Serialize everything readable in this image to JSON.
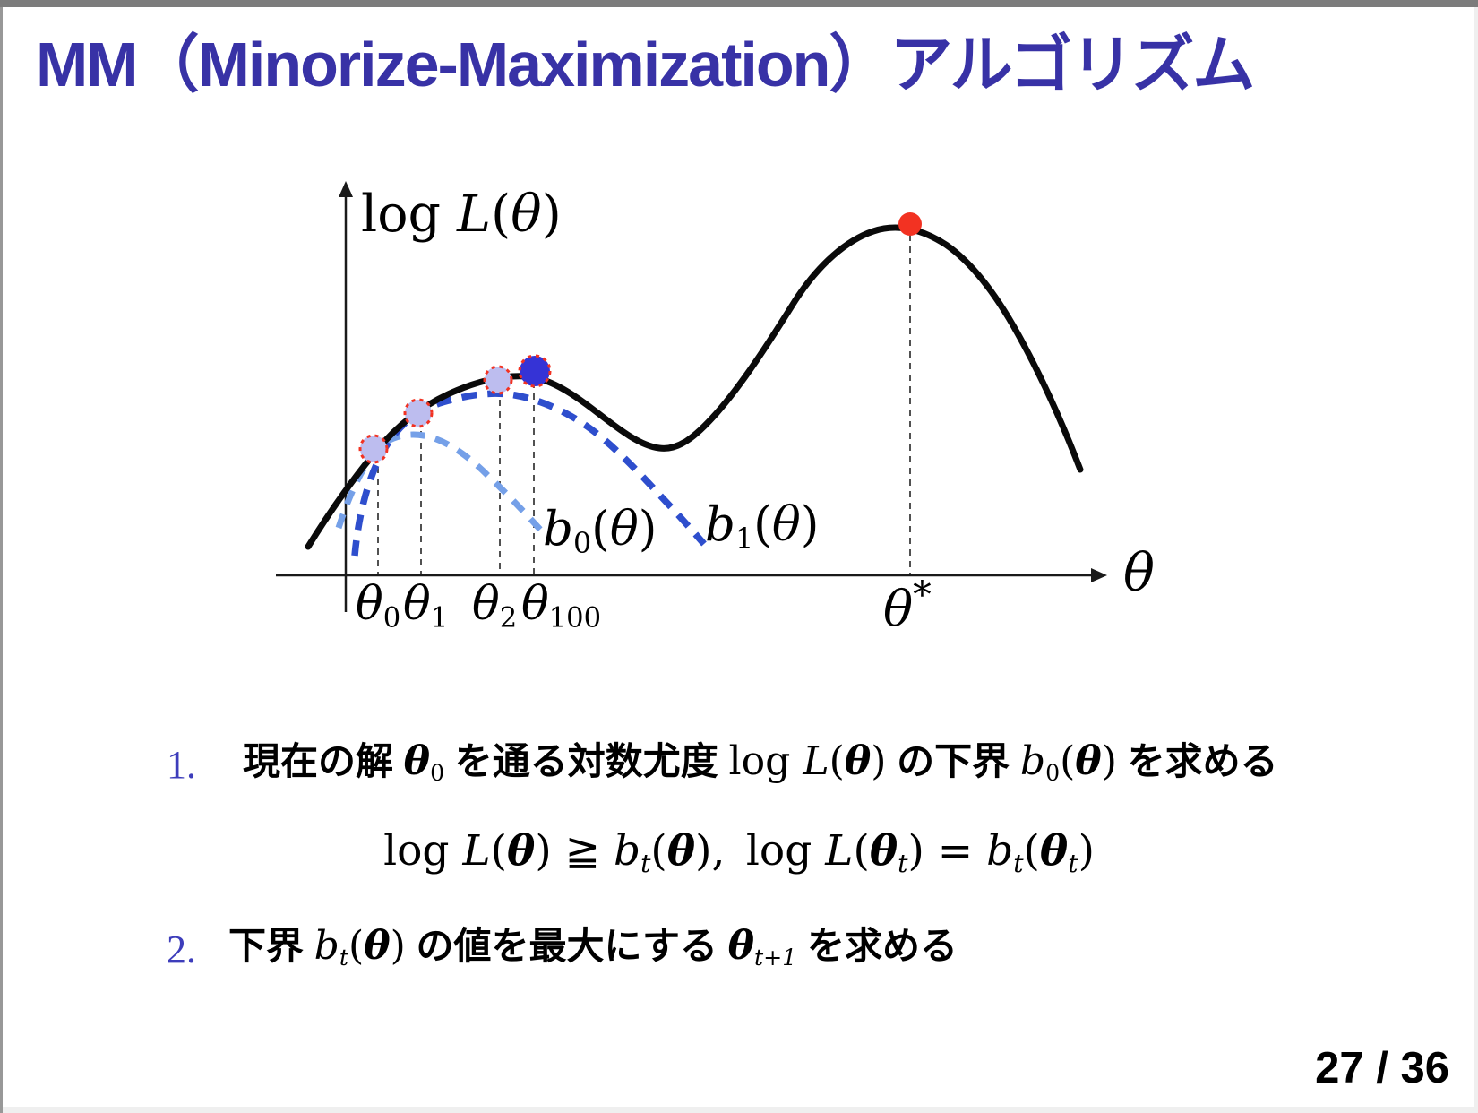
{
  "colors": {
    "title_blue": "#3832a6",
    "item_number_blue": "#3d3dbb",
    "curve_black": "#0a0a0a",
    "bound0_light_blue": "#75a0e8",
    "bound1_dark_blue": "#2e4ecd",
    "point_lavender": "#bdbdef",
    "point_blue": "#3533d6",
    "point_red": "#f23222",
    "ring_red": "#f23222",
    "axis_black": "#1a1a1a",
    "guide_gray": "#333333",
    "viewer_bar_gray": "#7c7c7c",
    "viewer_bg_gray": "#efefef"
  },
  "slide": {
    "title": "MM（Minorize-Maximization）アルゴリズム",
    "page_indicator": "27 / 36"
  },
  "diagram": {
    "type": "conceptual-function-plot",
    "description": "Log-likelihood curve with successive minorizing lower bounds",
    "y_axis_label_tokens": [
      {
        "t": "log ",
        "c": "rm"
      },
      {
        "t": "L",
        "c": "it"
      },
      {
        "t": "(",
        "c": "rm"
      },
      {
        "t": "θ",
        "c": "it"
      },
      {
        "t": ")",
        "c": "rm"
      }
    ],
    "x_axis_label_tokens": [
      {
        "t": "θ",
        "c": "it"
      }
    ],
    "b0_label_tokens": [
      {
        "t": "b",
        "c": "it"
      },
      {
        "t": "0",
        "c": "sub"
      },
      {
        "t": "(",
        "c": "rm"
      },
      {
        "t": "θ",
        "c": "it"
      },
      {
        "t": ")",
        "c": "rm"
      }
    ],
    "b1_label_tokens": [
      {
        "t": "b",
        "c": "it"
      },
      {
        "t": "1",
        "c": "sub"
      },
      {
        "t": "(",
        "c": "rm"
      },
      {
        "t": "θ",
        "c": "it"
      },
      {
        "t": ")",
        "c": "rm"
      }
    ],
    "tick_theta0_tokens": [
      {
        "t": "θ",
        "c": "it"
      },
      {
        "t": "0",
        "c": "sub"
      }
    ],
    "tick_theta1_tokens": [
      {
        "t": "θ",
        "c": "it"
      },
      {
        "t": "1",
        "c": "sub"
      }
    ],
    "tick_theta2_tokens": [
      {
        "t": "θ",
        "c": "it"
      },
      {
        "t": "2",
        "c": "sub"
      }
    ],
    "tick_theta100_tokens": [
      {
        "t": "θ",
        "c": "it"
      },
      {
        "t": "100",
        "c": "sub"
      }
    ],
    "theta_star_tokens": [
      {
        "t": "θ",
        "c": "it"
      },
      {
        "t": "*",
        "c": "supstar"
      }
    ],
    "curves": [
      {
        "name": "log-likelihood",
        "style": "solid",
        "color": "#0a0a0a"
      },
      {
        "name": "lower-bound-b0",
        "style": "dashed",
        "color": "#75a0e8"
      },
      {
        "name": "lower-bound-b1",
        "style": "dashed",
        "color": "#2e4ecd"
      }
    ],
    "markers": [
      {
        "name": "iterate-theta0",
        "fill": "#bdbdef",
        "ring": "#f23222"
      },
      {
        "name": "iterate-theta1",
        "fill": "#bdbdef",
        "ring": "#f23222"
      },
      {
        "name": "iterate-theta2",
        "fill": "#bdbdef",
        "ring": "#f23222"
      },
      {
        "name": "iterate-theta100-local-max",
        "fill": "#3533d6",
        "ring": "#f23222"
      },
      {
        "name": "global-optimum-theta-star",
        "fill": "#f23222"
      }
    ]
  },
  "list": {
    "item1_number": "1.",
    "item1_tokens": [
      {
        "t": "現在の解 ",
        "c": "jp"
      },
      {
        "t": "θ",
        "c": "bi"
      },
      {
        "t": "0",
        "c": "sub"
      },
      {
        "t": " を通る対数尤度 ",
        "c": "jp"
      },
      {
        "t": "log ",
        "c": "rm"
      },
      {
        "t": "L",
        "c": "it"
      },
      {
        "t": "(",
        "c": "rm"
      },
      {
        "t": "θ",
        "c": "bi"
      },
      {
        "t": ")",
        "c": "rm"
      },
      {
        "t": " の下界 ",
        "c": "jp"
      },
      {
        "t": "b",
        "c": "it"
      },
      {
        "t": "0",
        "c": "sub"
      },
      {
        "t": "(",
        "c": "rm"
      },
      {
        "t": "θ",
        "c": "bi"
      },
      {
        "t": ")",
        "c": "rm"
      },
      {
        "t": " を求める",
        "c": "jp"
      }
    ],
    "item2_number": "2.",
    "item2_tokens": [
      {
        "t": "下界 ",
        "c": "jp"
      },
      {
        "t": "b",
        "c": "it"
      },
      {
        "t": "t",
        "c": "subit"
      },
      {
        "t": "(",
        "c": "rm"
      },
      {
        "t": "θ",
        "c": "bi"
      },
      {
        "t": ")",
        "c": "rm"
      },
      {
        "t": " の値を最大にする ",
        "c": "jp"
      },
      {
        "t": "θ",
        "c": "bi"
      },
      {
        "t": "t+1",
        "c": "subit"
      },
      {
        "t": " を求める",
        "c": "jp"
      }
    ],
    "formula_tokens": [
      {
        "t": "log ",
        "c": "rm"
      },
      {
        "t": "L",
        "c": "it"
      },
      {
        "t": "(",
        "c": "rm"
      },
      {
        "t": "θ",
        "c": "bi"
      },
      {
        "t": ")",
        "c": "rm"
      },
      {
        "t": " ≧ ",
        "c": "rm"
      },
      {
        "t": "b",
        "c": "it"
      },
      {
        "t": "t",
        "c": "subit"
      },
      {
        "t": "(",
        "c": "rm"
      },
      {
        "t": "θ",
        "c": "bi"
      },
      {
        "t": "),",
        "c": "rm"
      },
      {
        "t": " ",
        "c": "rm"
      },
      {
        "t": "log ",
        "c": "rm"
      },
      {
        "t": "L",
        "c": "it"
      },
      {
        "t": "(",
        "c": "rm"
      },
      {
        "t": "θ",
        "c": "bi"
      },
      {
        "t": "t",
        "c": "subit"
      },
      {
        "t": ")",
        "c": "rm"
      },
      {
        "t": " = ",
        "c": "rm"
      },
      {
        "t": "b",
        "c": "it"
      },
      {
        "t": "t",
        "c": "subit"
      },
      {
        "t": "(",
        "c": "rm"
      },
      {
        "t": "θ",
        "c": "bi"
      },
      {
        "t": "t",
        "c": "subit"
      },
      {
        "t": ")",
        "c": "rm"
      }
    ]
  }
}
